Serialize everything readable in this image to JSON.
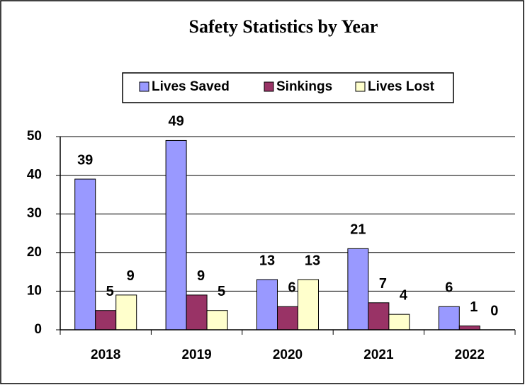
{
  "chart_data": {
    "type": "bar",
    "title": "Safety Statistics by Year",
    "categories": [
      "2018",
      "2019",
      "2020",
      "2021",
      "2022"
    ],
    "series": [
      {
        "name": "Lives Saved",
        "color": "#9999ff",
        "values": [
          39,
          49,
          13,
          21,
          6
        ]
      },
      {
        "name": "Sinkings",
        "color": "#993366",
        "values": [
          5,
          9,
          6,
          7,
          1
        ]
      },
      {
        "name": "Lives Lost",
        "color": "#ffffcc",
        "values": [
          9,
          5,
          13,
          4,
          0
        ]
      }
    ],
    "ylim": [
      0,
      50
    ],
    "yticks": [
      0,
      10,
      20,
      30,
      40,
      50
    ],
    "grid": true,
    "legend": "top"
  }
}
